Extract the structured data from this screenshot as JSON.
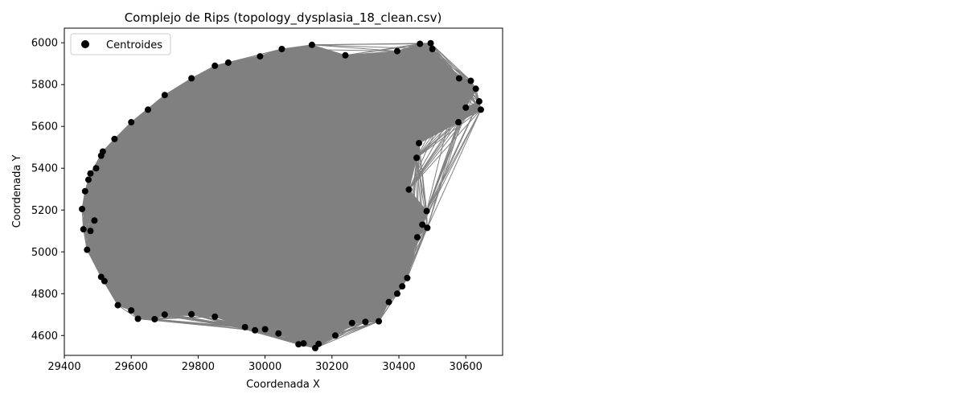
{
  "chart_data": {
    "type": "scatter",
    "title": "Complejo de Rips (topology_dysplasia_18_clean.csv)",
    "xlabel": "Coordenada X",
    "ylabel": "Coordenada Y",
    "xlim": [
      29400,
      30710
    ],
    "ylim": [
      4505,
      6070
    ],
    "x_ticks": [
      29400,
      29600,
      29800,
      30000,
      30200,
      30400,
      30600
    ],
    "y_ticks": [
      4600,
      4800,
      5000,
      5200,
      5400,
      5600,
      5800,
      6000
    ],
    "grid": false,
    "legend": {
      "position": "upper-left",
      "entries": [
        {
          "label": "Centroides",
          "marker": "circle",
          "color": "#000000"
        }
      ]
    },
    "colors": {
      "points": "#000000",
      "edges": "#808080",
      "fill": "#808080"
    },
    "series": [
      {
        "name": "Centroides",
        "points": [
          [
            29453,
            5205
          ],
          [
            29457,
            5108
          ],
          [
            29468,
            5010
          ],
          [
            29478,
            5100
          ],
          [
            29490,
            5150
          ],
          [
            29510,
            4880
          ],
          [
            29520,
            4860
          ],
          [
            29560,
            4745
          ],
          [
            29600,
            4720
          ],
          [
            29620,
            4680
          ],
          [
            29670,
            4678
          ],
          [
            29700,
            4700
          ],
          [
            29780,
            4702
          ],
          [
            29850,
            4690
          ],
          [
            29940,
            4640
          ],
          [
            29970,
            4625
          ],
          [
            30000,
            4630
          ],
          [
            30040,
            4610
          ],
          [
            30100,
            4558
          ],
          [
            30115,
            4562
          ],
          [
            30150,
            4540
          ],
          [
            30160,
            4560
          ],
          [
            30210,
            4600
          ],
          [
            30260,
            4660
          ],
          [
            30300,
            4665
          ],
          [
            30340,
            4668
          ],
          [
            30370,
            4760
          ],
          [
            30395,
            4800
          ],
          [
            30410,
            4835
          ],
          [
            30425,
            4875
          ],
          [
            30455,
            5070
          ],
          [
            30470,
            5130
          ],
          [
            30485,
            5115
          ],
          [
            30483,
            5195
          ],
          [
            30430,
            5298
          ],
          [
            30453,
            5450
          ],
          [
            30460,
            5520
          ],
          [
            30578,
            5620
          ],
          [
            30600,
            5690
          ],
          [
            30645,
            5680
          ],
          [
            30640,
            5720
          ],
          [
            30630,
            5780
          ],
          [
            30615,
            5818
          ],
          [
            30580,
            5830
          ],
          [
            30500,
            5970
          ],
          [
            30495,
            5998
          ],
          [
            30463,
            5995
          ],
          [
            30395,
            5960
          ],
          [
            30240,
            5940
          ],
          [
            30140,
            5990
          ],
          [
            30050,
            5970
          ],
          [
            29985,
            5935
          ],
          [
            29890,
            5905
          ],
          [
            29850,
            5890
          ],
          [
            29780,
            5830
          ],
          [
            29700,
            5750
          ],
          [
            29650,
            5680
          ],
          [
            29600,
            5620
          ],
          [
            29550,
            5540
          ],
          [
            29515,
            5480
          ],
          [
            29510,
            5460
          ],
          [
            29495,
            5400
          ],
          [
            29478,
            5375
          ],
          [
            29472,
            5345
          ],
          [
            29462,
            5290
          ]
        ]
      }
    ]
  }
}
